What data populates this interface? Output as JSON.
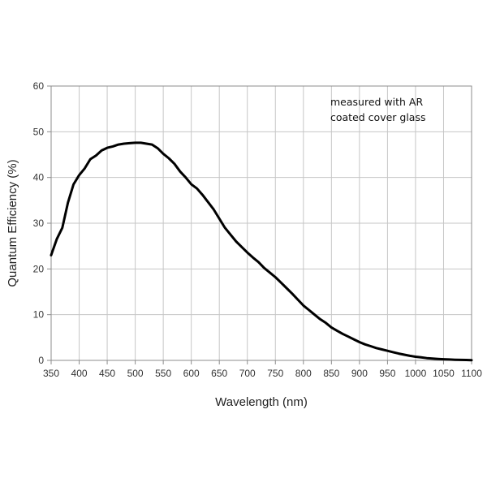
{
  "chart_data": {
    "type": "line",
    "title": "",
    "xlabel": "Wavelength (nm)",
    "ylabel": "Quantum Efficiency (%)",
    "xlim": [
      350,
      1100
    ],
    "ylim": [
      0,
      60
    ],
    "x_ticks": [
      350,
      400,
      450,
      500,
      550,
      600,
      650,
      700,
      750,
      800,
      850,
      900,
      950,
      1000,
      1050,
      1100
    ],
    "y_ticks": [
      0,
      10,
      20,
      30,
      40,
      50,
      60
    ],
    "grid": true,
    "legend": "none",
    "annotation": [
      "measured with AR",
      "coated cover glass"
    ],
    "series": [
      {
        "color": "#000000",
        "x": [
          350,
          360,
          370,
          380,
          390,
          400,
          410,
          420,
          430,
          440,
          450,
          460,
          470,
          480,
          490,
          500,
          510,
          520,
          530,
          540,
          550,
          560,
          570,
          580,
          590,
          600,
          610,
          620,
          630,
          640,
          650,
          660,
          670,
          680,
          690,
          700,
          710,
          720,
          730,
          740,
          750,
          760,
          770,
          780,
          790,
          800,
          810,
          820,
          830,
          840,
          850,
          860,
          870,
          880,
          890,
          900,
          910,
          920,
          930,
          940,
          950,
          960,
          970,
          980,
          990,
          1000,
          1010,
          1020,
          1030,
          1040,
          1050,
          1060,
          1070,
          1080,
          1090,
          1100
        ],
        "y": [
          23.0,
          26.5,
          29.0,
          34.5,
          38.5,
          40.5,
          42.0,
          44.0,
          44.8,
          45.9,
          46.5,
          46.8,
          47.2,
          47.4,
          47.5,
          47.6,
          47.6,
          47.4,
          47.2,
          46.4,
          45.2,
          44.2,
          43.0,
          41.3,
          40.0,
          38.5,
          37.6,
          36.2,
          34.6,
          33.0,
          31.0,
          29.0,
          27.5,
          26.0,
          24.8,
          23.6,
          22.5,
          21.5,
          20.2,
          19.2,
          18.2,
          17.0,
          15.8,
          14.6,
          13.3,
          12.0,
          11.0,
          10.0,
          9.0,
          8.2,
          7.2,
          6.5,
          5.8,
          5.2,
          4.6,
          4.0,
          3.5,
          3.1,
          2.7,
          2.4,
          2.1,
          1.8,
          1.5,
          1.25,
          1.0,
          0.8,
          0.65,
          0.5,
          0.4,
          0.32,
          0.25,
          0.2,
          0.15,
          0.1,
          0.08,
          0.05
        ]
      }
    ]
  }
}
